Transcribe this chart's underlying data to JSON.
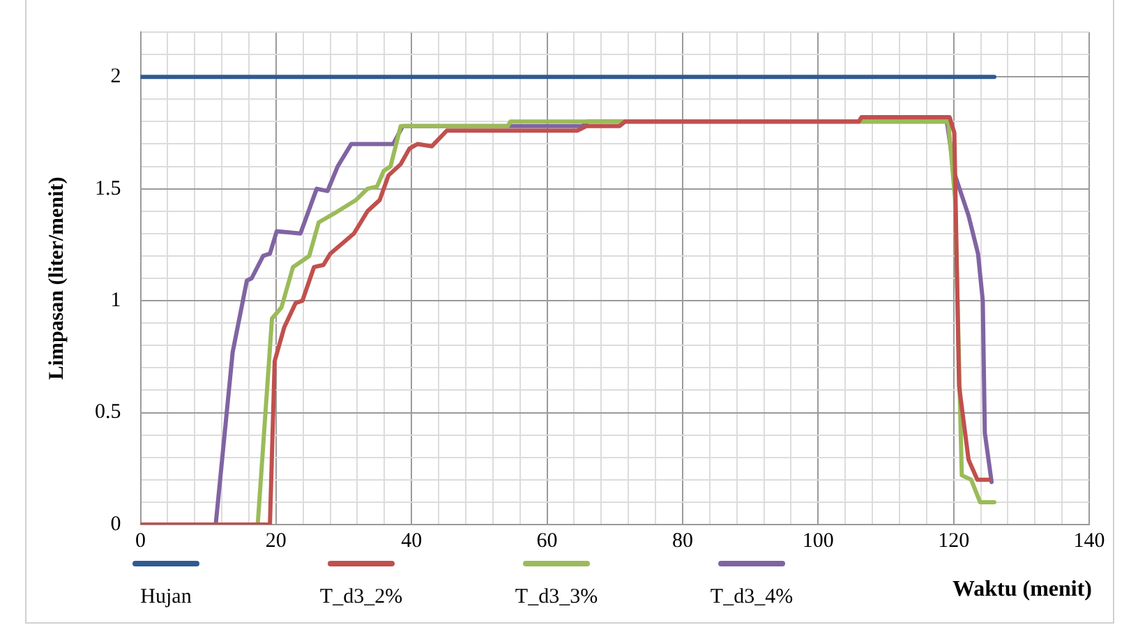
{
  "chart_data": {
    "type": "line",
    "xlabel": "Waktu (menit)",
    "ylabel": "Limpasan (liter/menit)",
    "xlim": [
      0,
      140
    ],
    "ylim": [
      0,
      2.2
    ],
    "xticks": [
      0,
      {
        "value": 4,
        "label": null
      },
      {
        "value": 8,
        "label": null
      },
      {
        "value": 12,
        "label": null
      },
      {
        "value": 16,
        "label": null
      },
      20,
      {
        "value": 24,
        "label": null
      },
      {
        "value": 28,
        "label": null
      },
      {
        "value": 32,
        "label": null
      },
      {
        "value": 36,
        "label": null
      },
      40,
      {
        "value": 44,
        "label": null
      },
      {
        "value": 48,
        "label": null
      },
      {
        "value": 52,
        "label": null
      },
      {
        "value": 56,
        "label": null
      },
      60,
      {
        "value": 64,
        "label": null
      },
      {
        "value": 68,
        "label": null
      },
      {
        "value": 72,
        "label": null
      },
      {
        "value": 76,
        "label": null
      },
      80,
      {
        "value": 84,
        "label": null
      },
      {
        "value": 88,
        "label": null
      },
      {
        "value": 92,
        "label": null
      },
      {
        "value": 96,
        "label": null
      },
      100,
      {
        "value": 104,
        "label": null
      },
      {
        "value": 108,
        "label": null
      },
      {
        "value": 112,
        "label": null
      },
      {
        "value": 116,
        "label": null
      },
      120,
      {
        "value": 124,
        "label": null
      },
      {
        "value": 128,
        "label": null
      },
      {
        "value": 132,
        "label": null
      },
      {
        "value": 136,
        "label": null
      },
      140
    ],
    "yticks": [
      0,
      {
        "value": 0.1,
        "label": null
      },
      {
        "value": 0.2,
        "label": null
      },
      {
        "value": 0.3,
        "label": null
      },
      {
        "value": 0.4,
        "label": null
      },
      0.5,
      {
        "value": 0.6,
        "label": null
      },
      {
        "value": 0.7,
        "label": null
      },
      {
        "value": 0.8,
        "label": null
      },
      {
        "value": 0.9,
        "label": null
      },
      1,
      {
        "value": 1.1,
        "label": null
      },
      {
        "value": 1.2,
        "label": null
      },
      {
        "value": 1.3,
        "label": null
      },
      {
        "value": 1.4,
        "label": null
      },
      1.5,
      {
        "value": 1.6,
        "label": null
      },
      {
        "value": 1.7,
        "label": null
      },
      {
        "value": 1.8,
        "label": null
      },
      {
        "value": 1.9,
        "label": null
      },
      2,
      {
        "value": 2.1,
        "label": null
      },
      {
        "value": 2.2,
        "label": null
      }
    ],
    "grid": true,
    "legend": "bottom",
    "marker": "none",
    "line_style": "solid",
    "series": [
      {
        "name": "Hujan",
        "color": "#2f5a92",
        "x": [
          0,
          126
        ],
        "values": [
          2,
          2
        ]
      },
      {
        "name": "T_d3_2%",
        "color": "#c0504d",
        "x": [
          0,
          19.1,
          19.8,
          21.2,
          22.9,
          23.9,
          25.6,
          27,
          28,
          31.5,
          33.5,
          35.3,
          36.6,
          38.4,
          39.7,
          40.9,
          43,
          45.2,
          64.5,
          65.8,
          70.7,
          71.5,
          106,
          106.4,
          119.4,
          120.1,
          120.8,
          122.2,
          123.5,
          125.2
        ],
        "values": [
          0,
          0,
          0.73,
          0.88,
          0.99,
          1.0,
          1.15,
          1.16,
          1.21,
          1.3,
          1.4,
          1.45,
          1.56,
          1.61,
          1.68,
          1.7,
          1.69,
          1.76,
          1.76,
          1.78,
          1.78,
          1.8,
          1.8,
          1.82,
          1.82,
          1.75,
          0.62,
          0.29,
          0.2,
          0.2
        ]
      },
      {
        "name": "T_d3_3%",
        "color": "#9bbb59",
        "x": [
          0,
          17.3,
          19.4,
          20.8,
          22.5,
          24.9,
          26.3,
          28.6,
          31.8,
          33.5,
          34.9,
          35.9,
          36.9,
          38.4,
          54.2,
          54.6,
          64.1,
          65,
          119.2,
          120.2,
          121.2,
          122.6,
          123.9,
          126
        ],
        "values": [
          0,
          0,
          0.92,
          0.97,
          1.15,
          1.2,
          1.35,
          1.39,
          1.45,
          1.5,
          1.51,
          1.58,
          1.6,
          1.78,
          1.78,
          1.8,
          1.8,
          1.8,
          1.8,
          1.46,
          0.22,
          0.2,
          0.1,
          0.1
        ]
      },
      {
        "name": "T_d3_4%",
        "color": "#8064a2",
        "x": [
          0,
          11.1,
          13.6,
          15.7,
          16.4,
          18.1,
          19.1,
          20.1,
          23.6,
          26,
          27.6,
          29.1,
          31.1,
          37.3,
          38.7,
          65.2,
          66,
          119,
          120.1,
          122.2,
          123.6,
          124.3,
          124.6,
          125.6
        ],
        "values": [
          0,
          0,
          0.77,
          1.09,
          1.1,
          1.2,
          1.21,
          1.31,
          1.3,
          1.5,
          1.49,
          1.6,
          1.7,
          1.7,
          1.78,
          1.78,
          1.8,
          1.8,
          1.57,
          1.38,
          1.21,
          1.0,
          0.41,
          0.19
        ]
      }
    ]
  }
}
